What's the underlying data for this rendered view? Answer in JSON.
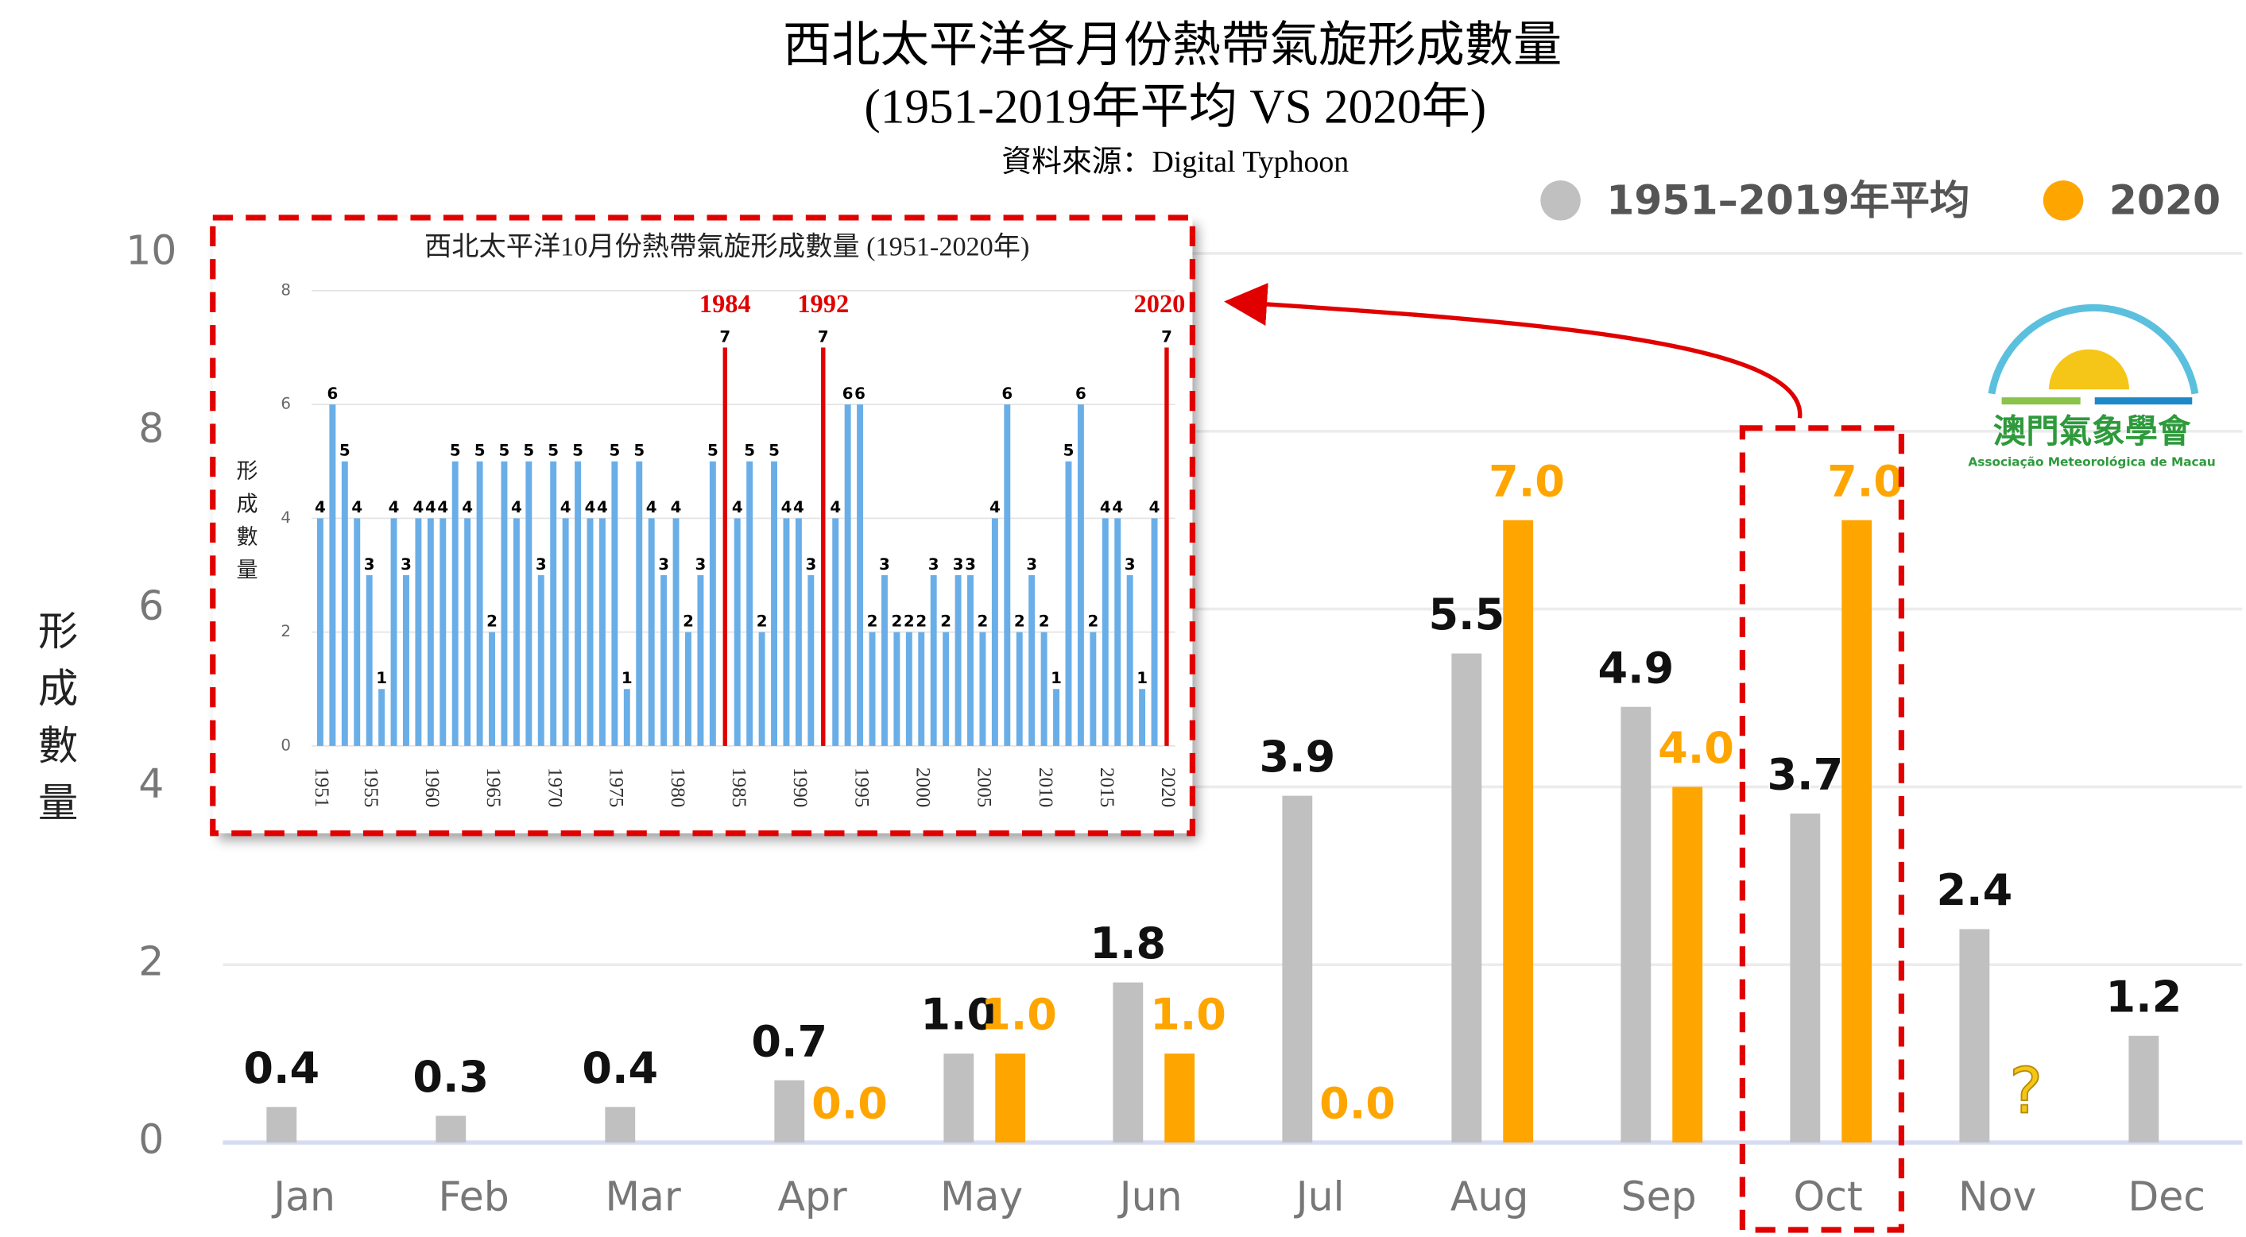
{
  "chart_data": [
    {
      "type": "bar",
      "title": "西北太平洋各月份熱帶氣旋形成數量",
      "subtitle": "(1951-2019年平均 VS 2020年)",
      "source": "資料來源：Digital Typhoon",
      "y_label": "形成數量",
      "categories": [
        "Jan",
        "Feb",
        "Mar",
        "Apr",
        "May",
        "Jun",
        "Jul",
        "Aug",
        "Sep",
        "Oct",
        "Nov",
        "Dec"
      ],
      "series": [
        {
          "name": "1951–2019年平均",
          "color": "#c0c0c0",
          "values": [
            0.4,
            0.3,
            0.4,
            0.7,
            1.0,
            1.8,
            3.9,
            5.5,
            4.9,
            3.7,
            2.4,
            1.2
          ],
          "value_labels": [
            "0.4",
            "0.3",
            "0.4",
            "0.7",
            "1.0",
            "1.8",
            "3.9",
            "5.5",
            "4.9",
            "3.7",
            "2.4",
            "1.2"
          ]
        },
        {
          "name": "2020",
          "color": "#ffa500",
          "values": [
            null,
            null,
            null,
            0.0,
            1.0,
            1.0,
            0.0,
            7.0,
            4.0,
            7.0,
            null,
            null
          ],
          "value_labels": [
            null,
            null,
            null,
            "0.0",
            "1.0",
            "1.0",
            "0.0",
            "7.0",
            "4.0",
            "7.0",
            null,
            null
          ]
        }
      ],
      "annotations": [
        {
          "text": "?",
          "category": "Nov"
        }
      ],
      "ylim": [
        0,
        10
      ],
      "yticks": [
        0,
        2,
        4,
        6,
        8,
        10
      ],
      "grid": true,
      "legend": "top-right"
    },
    {
      "type": "bar",
      "title": "西北太平洋10月份熱帶氣旋形成數量 (1951-2020年)",
      "y_label": "形成數量",
      "x": [
        1951,
        1952,
        1953,
        1954,
        1955,
        1956,
        1957,
        1958,
        1959,
        1960,
        1961,
        1962,
        1963,
        1964,
        1965,
        1966,
        1967,
        1968,
        1969,
        1970,
        1971,
        1972,
        1973,
        1974,
        1975,
        1976,
        1977,
        1978,
        1979,
        1980,
        1981,
        1982,
        1983,
        1984,
        1985,
        1986,
        1987,
        1988,
        1989,
        1990,
        1991,
        1992,
        1993,
        1994,
        1995,
        1996,
        1997,
        1998,
        1999,
        2000,
        2001,
        2002,
        2003,
        2004,
        2005,
        2006,
        2007,
        2008,
        2009,
        2010,
        2011,
        2012,
        2013,
        2014,
        2015,
        2016,
        2017,
        2018,
        2019,
        2020
      ],
      "values": [
        4,
        6,
        5,
        4,
        3,
        1,
        4,
        3,
        4,
        4,
        4,
        5,
        4,
        5,
        2,
        5,
        4,
        5,
        3,
        5,
        4,
        5,
        4,
        4,
        5,
        1,
        5,
        4,
        3,
        4,
        2,
        3,
        5,
        7,
        4,
        5,
        2,
        5,
        4,
        4,
        3,
        7,
        4,
        6,
        6,
        2,
        3,
        2,
        2,
        2,
        3,
        2,
        3,
        3,
        2,
        4,
        6,
        2,
        3,
        2,
        1,
        5,
        6,
        2,
        4,
        4,
        3,
        1,
        4,
        7
      ],
      "color": "#6aaee8",
      "highlight": [
        1984,
        1992,
        2020
      ],
      "highlight_color": "#e00000",
      "xlim": [
        1951,
        2020
      ],
      "xticks": [
        1951,
        1955,
        1960,
        1965,
        1970,
        1975,
        1980,
        1985,
        1990,
        1995,
        2000,
        2005,
        2010,
        2015,
        2020
      ],
      "ylim": [
        0,
        8
      ],
      "yticks": [
        0,
        2,
        4,
        6,
        8
      ],
      "grid": true
    }
  ],
  "logo": {
    "name": "澳門氣象學會",
    "subname": "Associação Meteorológica de Macau"
  }
}
